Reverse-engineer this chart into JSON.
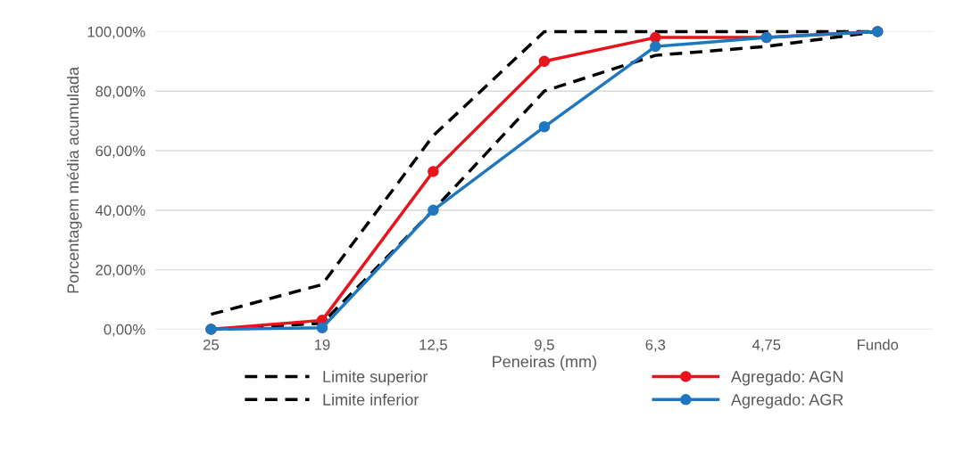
{
  "chart_data": {
    "type": "line",
    "xlabel": "Peneiras (mm)",
    "ylabel": "Porcentagem média acumulada",
    "categories": [
      "25",
      "19",
      "12,5",
      "9,5",
      "6,3",
      "4,75",
      "Fundo"
    ],
    "series": [
      {
        "name": "Limite superior",
        "color": "#000000",
        "line_style": "dashed",
        "marker": "none",
        "values": [
          5,
          15,
          65,
          100,
          100,
          100,
          100
        ]
      },
      {
        "name": "Limite inferior",
        "color": "#000000",
        "line_style": "dashed",
        "marker": "none",
        "values": [
          0,
          2,
          40,
          80,
          92,
          95,
          100
        ]
      },
      {
        "name": "Agregado: AGN",
        "color": "#e8141c",
        "line_style": "solid",
        "marker": "circle",
        "values": [
          0,
          3,
          53,
          90,
          98,
          98,
          100
        ]
      },
      {
        "name": "Agregado: AGR",
        "color": "#1f77c0",
        "line_style": "solid",
        "marker": "circle",
        "values": [
          0,
          0.5,
          40,
          68,
          95,
          98,
          100
        ]
      }
    ],
    "ylim": [
      0,
      100
    ],
    "yticks": [
      {
        "value": 0,
        "label": "0,00%"
      },
      {
        "value": 20,
        "label": "20,00%"
      },
      {
        "value": 40,
        "label": "40,00%"
      },
      {
        "value": 60,
        "label": "60,00%"
      },
      {
        "value": 80,
        "label": "80,00%"
      },
      {
        "value": 100,
        "label": "100,00%"
      }
    ],
    "grid": "y",
    "legend": "bottom"
  }
}
